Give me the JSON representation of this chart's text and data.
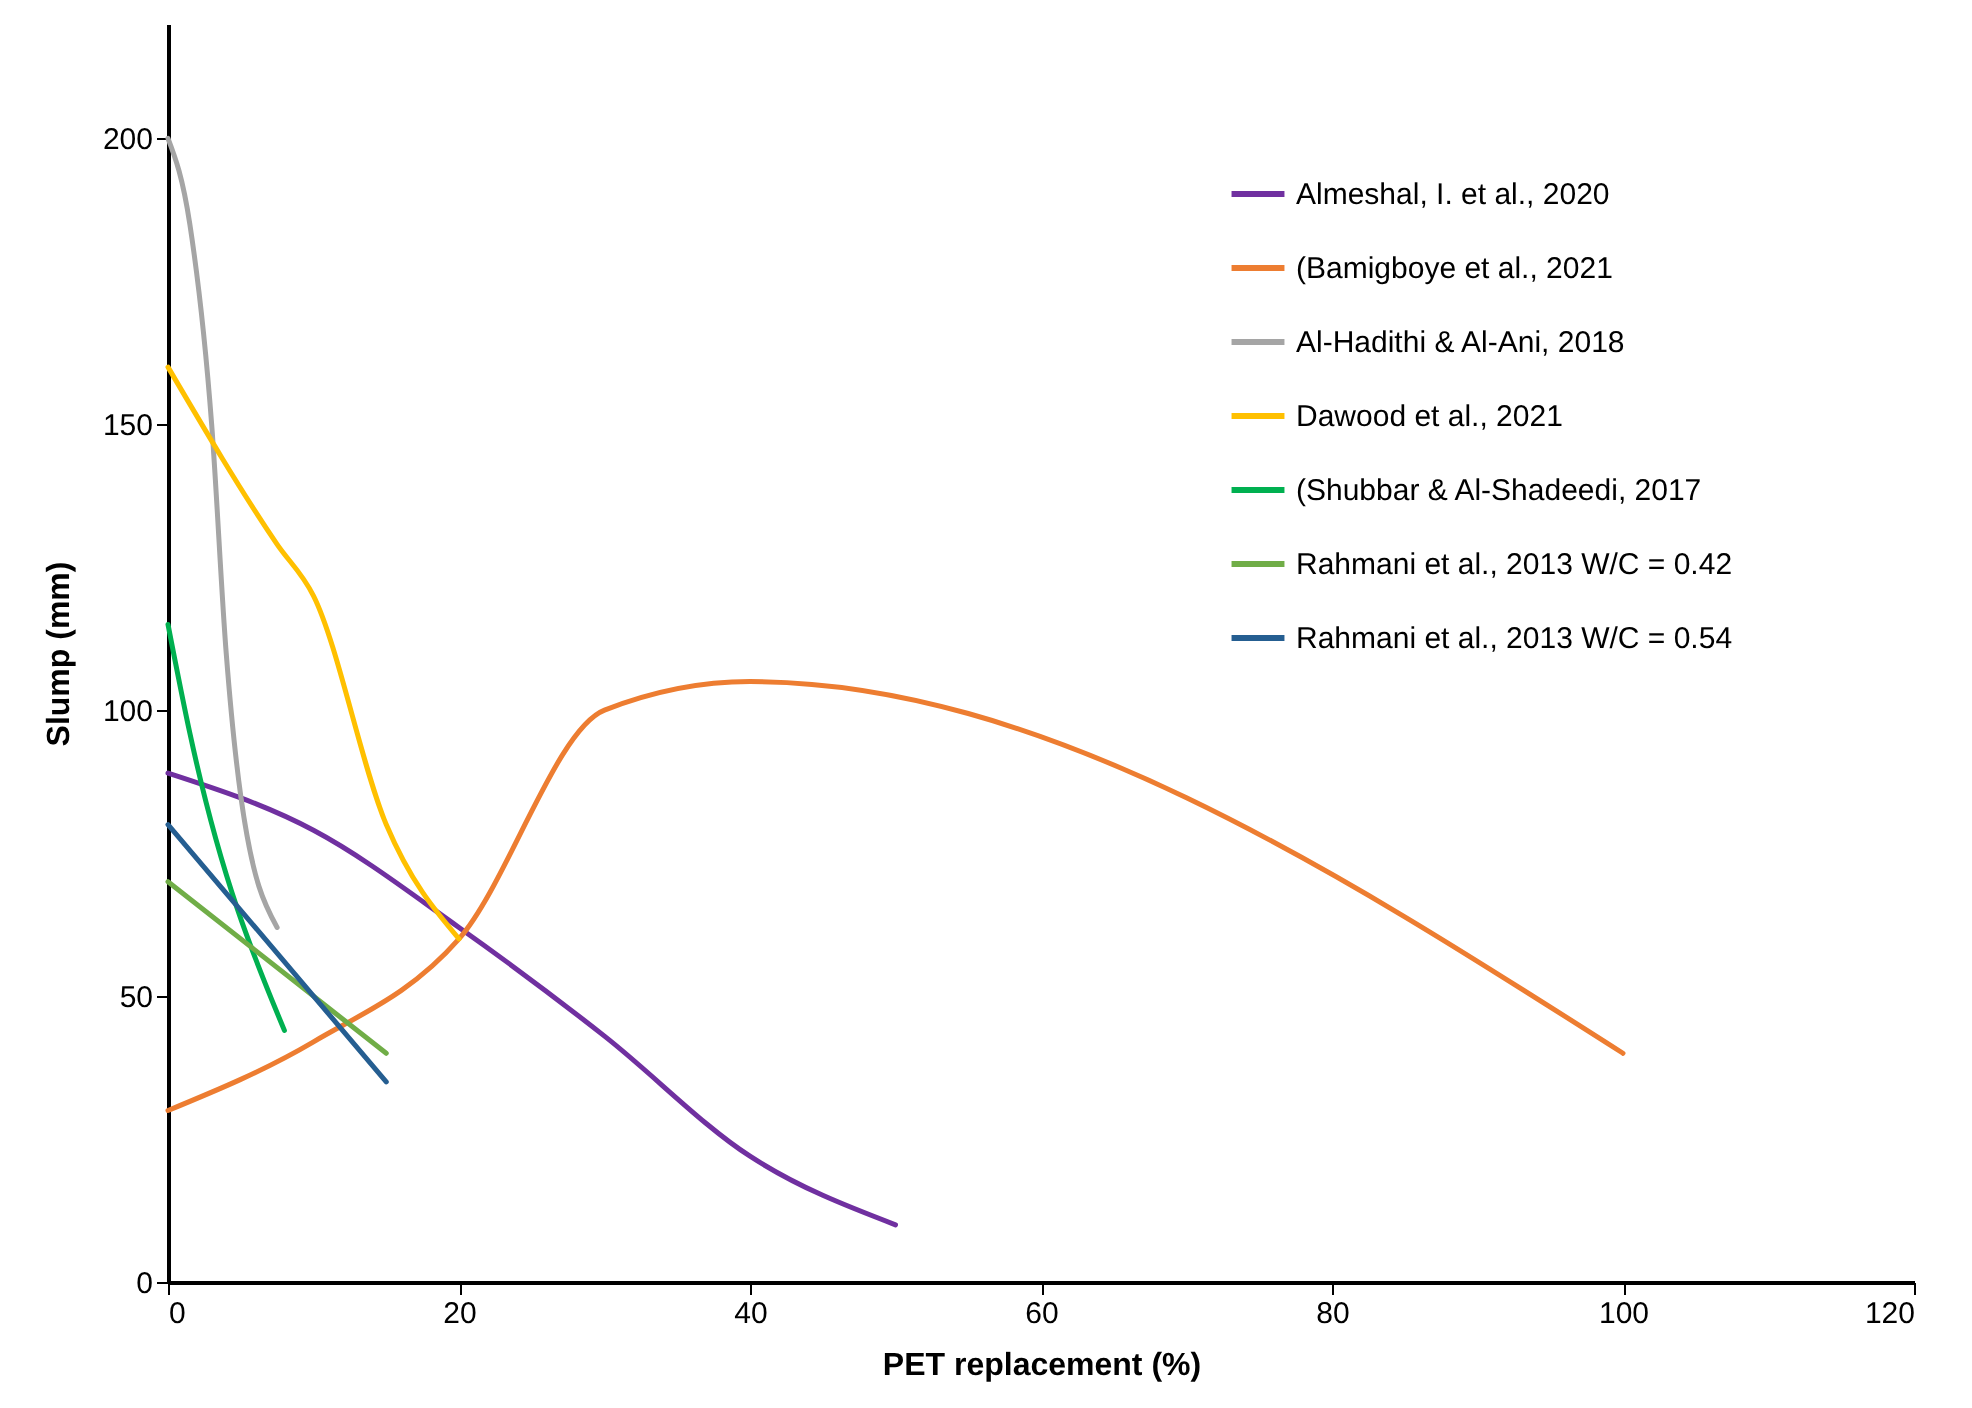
{
  "chart_data": {
    "type": "line",
    "xlabel": "PET replacement (%)",
    "ylabel": "Slump (mm)",
    "xlim": [
      0,
      120
    ],
    "xticks": [
      0,
      20,
      40,
      60,
      80,
      100,
      120
    ],
    "ylim": [
      0,
      220
    ],
    "yticks": [
      0,
      50,
      100,
      150,
      200
    ],
    "grid": false,
    "legend": "top right",
    "marker": "none",
    "line_style": "solid",
    "series": [
      {
        "name": "Almeshal, I. et al., 2020",
        "color": "#7030a0",
        "x": [
          0,
          10,
          20,
          30,
          40,
          50
        ],
        "values": [
          89,
          79,
          62,
          43,
          22,
          10
        ]
      },
      {
        "name": "(Bamigboye et al., 2021",
        "color": "#ed7d31",
        "x": [
          0,
          10,
          20,
          30,
          40,
          100
        ],
        "values": [
          30,
          42,
          60,
          100,
          105,
          40
        ]
      },
      {
        "name": "Al-Hadithi & Al-Ani, 2018",
        "color": "#a5a5a5",
        "x": [
          0,
          1.5,
          3,
          4,
          5,
          7.5
        ],
        "values": [
          200,
          185,
          150,
          110,
          85,
          62
        ]
      },
      {
        "name": "Dawood et al., 2021",
        "color": "#ffc000",
        "x": [
          0,
          7.5,
          10,
          15,
          20
        ],
        "values": [
          160,
          129,
          120,
          80,
          60
        ]
      },
      {
        "name": "(Shubbar & Al-Shadeedi, 2017",
        "color": "#00b050",
        "x": [
          0,
          1.5,
          8
        ],
        "values": [
          115,
          96,
          44
        ]
      },
      {
        "name": "Rahmani et al., 2013 W/C = 0.42",
        "color": "#70ad47",
        "x": [
          0,
          15
        ],
        "values": [
          70,
          40
        ]
      },
      {
        "name": "Rahmani et al., 2013 W/C = 0.54",
        "color": "#255e91",
        "x": [
          0,
          15
        ],
        "values": [
          80,
          35
        ]
      }
    ]
  }
}
